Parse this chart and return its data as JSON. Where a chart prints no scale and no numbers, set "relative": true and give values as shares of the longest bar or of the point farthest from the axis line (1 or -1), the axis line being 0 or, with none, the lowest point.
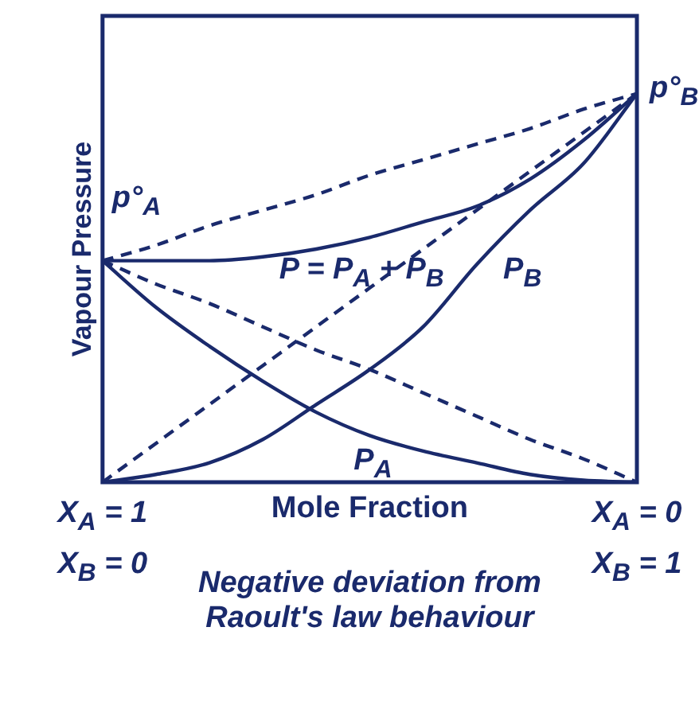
{
  "chart_data": {
    "type": "line",
    "relative": true,
    "ylabel": "Vapour Pressure",
    "xlabel": "Mole Fraction",
    "categories": [
      "X$_{A}$ = 1\nX$_{B}$ = 0",
      null,
      null,
      null,
      null,
      null,
      null,
      null,
      null,
      null,
      "X$_{A}$ = 0\nX$_{B}$ = 1"
    ],
    "grid": false,
    "legend": false,
    "marker": "none",
    "series": [
      {
        "name": "P = P$_{A}$ + P$_{B}$",
        "color": "#1a2a6c",
        "line_style": "solid",
        "values": [
          0.57,
          0.57,
          0.57,
          0.58,
          0.6,
          0.63,
          0.67,
          0.71,
          0.78,
          0.88,
          1
        ]
      },
      {
        "name": "P$_{B}$",
        "color": "#1a2a6c",
        "line_style": "solid",
        "values": [
          0,
          0.02,
          0.05,
          0.11,
          0.2,
          0.29,
          0.4,
          0.56,
          0.7,
          0.82,
          1
        ]
      },
      {
        "name": "P$_{A}$",
        "color": "#1a2a6c",
        "line_style": "solid",
        "values": [
          0.57,
          0.45,
          0.35,
          0.26,
          0.18,
          0.12,
          0.08,
          0.05,
          0.02,
          0.005,
          0
        ]
      },
      {
        "color": "#1a2a6c",
        "line_style": "dashed",
        "values": [
          0.57,
          0.61,
          0.66,
          0.7,
          0.74,
          0.79,
          0.83,
          0.87,
          0.91,
          0.96,
          1
        ]
      },
      {
        "color": "#1a2a6c",
        "line_style": "dashed",
        "values": [
          0,
          0.1,
          0.2,
          0.3,
          0.4,
          0.5,
          0.6,
          0.7,
          0.8,
          0.9,
          1
        ]
      },
      {
        "color": "#1a2a6c",
        "line_style": "dashed",
        "values": [
          0.57,
          0.51,
          0.46,
          0.4,
          0.34,
          0.29,
          0.23,
          0.17,
          0.11,
          0.06,
          0
        ]
      }
    ],
    "annotations": [
      {
        "text": "p°$_{A}$",
        "x": "X$_{A}$ = 1\nX$_{B}$ = 0",
        "y": 0.57
      },
      {
        "text": "p°$_{B}$",
        "x": "X$_{A}$ = 0\nX$_{B}$ = 1",
        "y": 1
      },
      "Negative deviation from\nRaoult's law behaviour"
    ]
  }
}
